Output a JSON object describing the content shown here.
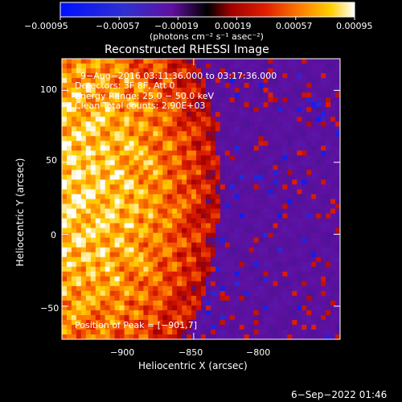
{
  "chart_data": {
    "type": "heatmap",
    "title": "Reconstructed RHESSI Image",
    "xlabel": "Heliocentric X (arcsec)",
    "ylabel": "Heliocentric Y (arcsec)",
    "xlim": [
      -945,
      -850
    ],
    "ylim": [
      -73,
      122
    ],
    "x_ticks": [
      -900,
      -850,
      -800
    ],
    "y_ticks": [
      100,
      50,
      0,
      -50
    ],
    "x_tick_labels": [
      "−900",
      "−850",
      "−800"
    ],
    "y_tick_labels": [
      "100",
      "50",
      "0",
      "−50"
    ],
    "annotations": [
      "9−Aug−2016 03:11:36.000 to 03:17:36.000",
      "Detectors: 3F 8F, Att 0",
      "Energy Range: 25.0 − 50.0 keV",
      "Clean     Total counts: 2.90E+03"
    ],
    "peak_label": "Position of Peak = [−901,7]",
    "peak_position": [
      -901,
      7
    ],
    "colorbar": {
      "range": [
        -0.00095,
        0.00095
      ],
      "tick_values": [
        -0.00095,
        -0.00057,
        -0.00019,
        0.00019,
        0.00057,
        0.00095
      ],
      "tick_labels": [
        "−0.00095",
        "−0.00057",
        "−0.00019",
        "0.00019",
        "0.00057",
        "0.00095"
      ],
      "unit_label": "(photons cm⁻² s⁻¹ asec⁻²)"
    }
  },
  "footer": {
    "timestamp": "6−Sep−2022 01:46"
  }
}
